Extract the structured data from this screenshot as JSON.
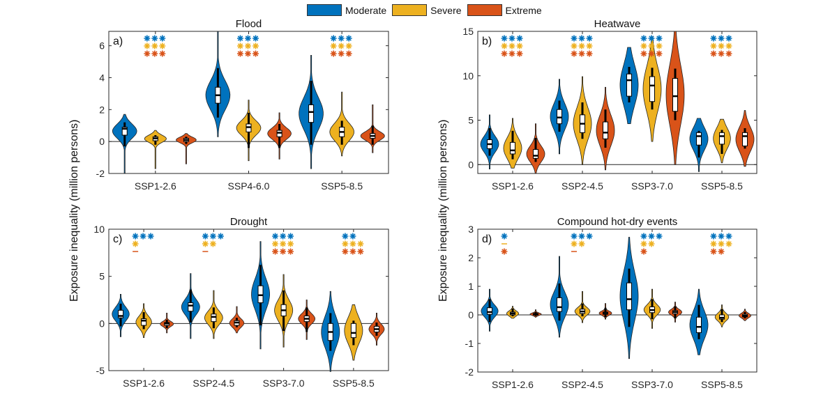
{
  "legend": {
    "items": [
      {
        "label": "Moderate",
        "color": "#0072BD"
      },
      {
        "label": "Severe",
        "color": "#EDB120"
      },
      {
        "label": "Extreme",
        "color": "#D95319"
      }
    ]
  },
  "ylabel_left": "Exposure inequality (million persons)",
  "ylabel_right": "Exposure inequality (million persons)",
  "chart_data": [
    {
      "type": "violin",
      "panel": "a)",
      "title": "Flood",
      "xlabel": "",
      "ylabel": "Exposure inequality (million persons)",
      "ylim": [
        -2,
        6.9
      ],
      "yticks": [
        -2,
        0,
        2,
        4,
        6
      ],
      "categories": [
        "SSP1-2.6",
        "SSP4-6.0",
        "SSP5-8.5"
      ],
      "series": [
        {
          "name": "Moderate",
          "median": [
            0.8,
            2.9,
            1.85
          ],
          "q1": [
            0.4,
            2.4,
            1.2
          ],
          "q3": [
            0.9,
            3.4,
            2.3
          ],
          "wlo": [
            -0.3,
            1.5,
            -0.2
          ],
          "whi": [
            1.2,
            4.6,
            3.8
          ],
          "min": [
            -2.0,
            0.3,
            -1.7
          ],
          "max": [
            1.7,
            6.9,
            5.4
          ]
        },
        {
          "name": "Severe",
          "median": [
            0.2,
            0.9,
            0.6
          ],
          "q1": [
            0.05,
            0.6,
            0.3
          ],
          "q3": [
            0.3,
            1.1,
            0.9
          ],
          "wlo": [
            -0.2,
            -0.4,
            -0.2
          ],
          "whi": [
            0.4,
            1.8,
            1.3
          ],
          "min": [
            -1.7,
            -1.2,
            -0.9
          ],
          "max": [
            0.7,
            2.6,
            3.1
          ]
        },
        {
          "name": "Extreme",
          "median": [
            0.1,
            0.55,
            0.35
          ],
          "q1": [
            0.0,
            0.3,
            0.2
          ],
          "q3": [
            0.2,
            0.7,
            0.5
          ],
          "wlo": [
            -0.15,
            -0.4,
            -0.2
          ],
          "whi": [
            0.3,
            1.1,
            1.0
          ],
          "min": [
            -1.4,
            -1.1,
            -0.7
          ],
          "max": [
            0.5,
            1.8,
            2.3
          ]
        }
      ],
      "significance": [
        [
          "***",
          "***",
          "***"
        ],
        [
          "***",
          "***",
          "***"
        ],
        [
          "***",
          "***",
          "***"
        ]
      ]
    },
    {
      "type": "violin",
      "panel": "b)",
      "title": "Heatwave",
      "xlabel": "",
      "ylabel": "Exposure inequality (million persons)",
      "ylim": [
        -1,
        15
      ],
      "yticks": [
        0,
        5,
        10,
        15
      ],
      "categories": [
        "SSP1-2.6",
        "SSP2-4.5",
        "SSP3-7.0",
        "SSP5-8.5"
      ],
      "series": [
        {
          "name": "Moderate",
          "median": [
            2.3,
            5.3,
            9.5,
            3.2
          ],
          "q1": [
            1.8,
            4.6,
            7.7,
            2.2
          ],
          "q3": [
            2.8,
            6.2,
            10.2,
            3.6
          ],
          "wlo": [
            1.0,
            3.7,
            7.0,
            0.8
          ],
          "whi": [
            4.1,
            7.2,
            11.0,
            3.8
          ],
          "min": [
            -0.5,
            1.2,
            4.6,
            -0.8
          ],
          "max": [
            5.6,
            9.6,
            13.2,
            5.2
          ]
        },
        {
          "name": "Severe",
          "median": [
            1.6,
            4.6,
            8.9,
            3.2
          ],
          "q1": [
            1.2,
            3.6,
            7.1,
            2.3
          ],
          "q3": [
            2.5,
            5.6,
            9.9,
            3.6
          ],
          "wlo": [
            0.6,
            2.9,
            6.2,
            1.2
          ],
          "whi": [
            3.8,
            7.0,
            10.9,
            3.9
          ],
          "min": [
            -0.4,
            0.0,
            2.6,
            0.2
          ],
          "max": [
            5.2,
            9.9,
            14.4,
            5.1
          ]
        },
        {
          "name": "Extreme",
          "median": [
            1.0,
            3.6,
            7.7,
            3.2
          ],
          "q1": [
            0.7,
            2.9,
            6.0,
            2.1
          ],
          "q3": [
            1.7,
            4.8,
            9.7,
            3.6
          ],
          "wlo": [
            0.3,
            1.9,
            5.0,
            1.8
          ],
          "whi": [
            3.0,
            6.2,
            10.8,
            4.1
          ],
          "min": [
            -1.0,
            -0.6,
            0.0,
            -0.2
          ],
          "max": [
            4.6,
            8.7,
            15.0,
            6.1
          ]
        }
      ],
      "significance": [
        [
          "***",
          "***",
          "***",
          "***"
        ],
        [
          "***",
          "***",
          "***",
          "***"
        ],
        [
          "***",
          "***",
          "***",
          "***"
        ]
      ]
    },
    {
      "type": "violin",
      "panel": "c)",
      "title": "Drought",
      "xlabel": "",
      "ylabel": "Exposure inequality (million persons)",
      "ylim": [
        -5,
        10
      ],
      "yticks": [
        -5,
        0,
        5,
        10
      ],
      "categories": [
        "SSP1-2.6",
        "SSP2-4.5",
        "SSP3-7.0",
        "SSP5-8.5"
      ],
      "series": [
        {
          "name": "Moderate",
          "median": [
            0.8,
            1.9,
            3.0,
            -0.9
          ],
          "q1": [
            0.6,
            1.3,
            2.2,
            -1.8
          ],
          "q3": [
            1.4,
            2.2,
            4.0,
            0.0
          ],
          "wlo": [
            -0.3,
            0.1,
            -0.2,
            -2.9
          ],
          "whi": [
            2.1,
            3.6,
            6.2,
            1.1
          ],
          "min": [
            -1.4,
            -1.6,
            -2.7,
            -5.1
          ],
          "max": [
            3.1,
            5.3,
            8.7,
            3.4
          ]
        },
        {
          "name": "Severe",
          "median": [
            0.3,
            0.7,
            1.4,
            -1.0
          ],
          "q1": [
            -0.2,
            0.2,
            0.8,
            -1.5
          ],
          "q3": [
            0.5,
            1.0,
            2.0,
            0.0
          ],
          "wlo": [
            -0.6,
            -0.5,
            -0.8,
            -2.3
          ],
          "whi": [
            1.2,
            1.7,
            3.5,
            0.3
          ],
          "min": [
            -1.5,
            -1.6,
            -2.5,
            -3.9
          ],
          "max": [
            2.1,
            3.5,
            5.2,
            2.0
          ]
        },
        {
          "name": "Extreme",
          "median": [
            0.0,
            0.1,
            0.5,
            -0.6
          ],
          "q1": [
            -0.2,
            -0.2,
            0.2,
            -0.9
          ],
          "q3": [
            0.1,
            0.3,
            0.8,
            -0.3
          ],
          "wlo": [
            -0.5,
            -0.4,
            -0.9,
            -1.3
          ],
          "whi": [
            0.4,
            0.6,
            1.7,
            0.1
          ],
          "min": [
            -1.0,
            -1.0,
            -1.7,
            -2.3
          ],
          "max": [
            1.1,
            1.8,
            2.5,
            1.1
          ]
        }
      ],
      "significance": [
        [
          "***",
          "***",
          "***",
          "**"
        ],
        [
          "*",
          "**",
          "***",
          "***"
        ],
        [
          "-",
          "-",
          "***",
          "***"
        ]
      ]
    },
    {
      "type": "violin",
      "panel": "d)",
      "title": "Compound hot-dry events",
      "xlabel": "",
      "ylabel": "Exposure inequality (million persons)",
      "ylim": [
        -2,
        3
      ],
      "yticks": [
        -2,
        -1,
        0,
        1,
        2,
        3
      ],
      "categories": [
        "SSP1-2.6",
        "SSP2-4.5",
        "SSP3-7.0",
        "SSP5-8.5"
      ],
      "series": [
        {
          "name": "Moderate",
          "median": [
            0.1,
            0.27,
            0.55,
            -0.42
          ],
          "q1": [
            0.02,
            0.12,
            0.18,
            -0.62
          ],
          "q3": [
            0.25,
            0.6,
            1.12,
            -0.08
          ],
          "wlo": [
            -0.25,
            -0.2,
            -0.42,
            -0.85
          ],
          "whi": [
            0.55,
            1.1,
            1.62,
            0.35
          ],
          "min": [
            -0.57,
            -0.78,
            -1.53,
            -1.4
          ],
          "max": [
            0.9,
            2.05,
            2.72,
            0.9
          ]
        },
        {
          "name": "Severe",
          "median": [
            0.05,
            0.12,
            0.17,
            -0.1
          ],
          "q1": [
            0.0,
            0.05,
            0.08,
            -0.15
          ],
          "q3": [
            0.1,
            0.2,
            0.28,
            0.0
          ],
          "wlo": [
            -0.05,
            -0.05,
            -0.15,
            -0.25
          ],
          "whi": [
            0.22,
            0.4,
            0.55,
            0.2
          ],
          "min": [
            -0.12,
            -0.27,
            -0.47,
            -0.42
          ],
          "max": [
            0.3,
            0.82,
            0.9,
            0.35
          ]
        },
        {
          "name": "Extreme",
          "median": [
            0.02,
            0.06,
            0.1,
            -0.03
          ],
          "q1": [
            0.0,
            0.02,
            0.04,
            -0.07
          ],
          "q3": [
            0.05,
            0.1,
            0.15,
            0.02
          ],
          "wlo": [
            -0.04,
            -0.08,
            -0.12,
            -0.12
          ],
          "whi": [
            0.1,
            0.25,
            0.3,
            0.1
          ],
          "min": [
            -0.08,
            -0.15,
            -0.25,
            -0.2
          ],
          "max": [
            0.18,
            0.4,
            0.45,
            0.2
          ]
        }
      ],
      "significance": [
        [
          "*",
          "***",
          "***",
          "***"
        ],
        [
          "-",
          "**",
          "**",
          "***"
        ],
        [
          "*",
          "-",
          "*",
          "**"
        ]
      ]
    }
  ]
}
